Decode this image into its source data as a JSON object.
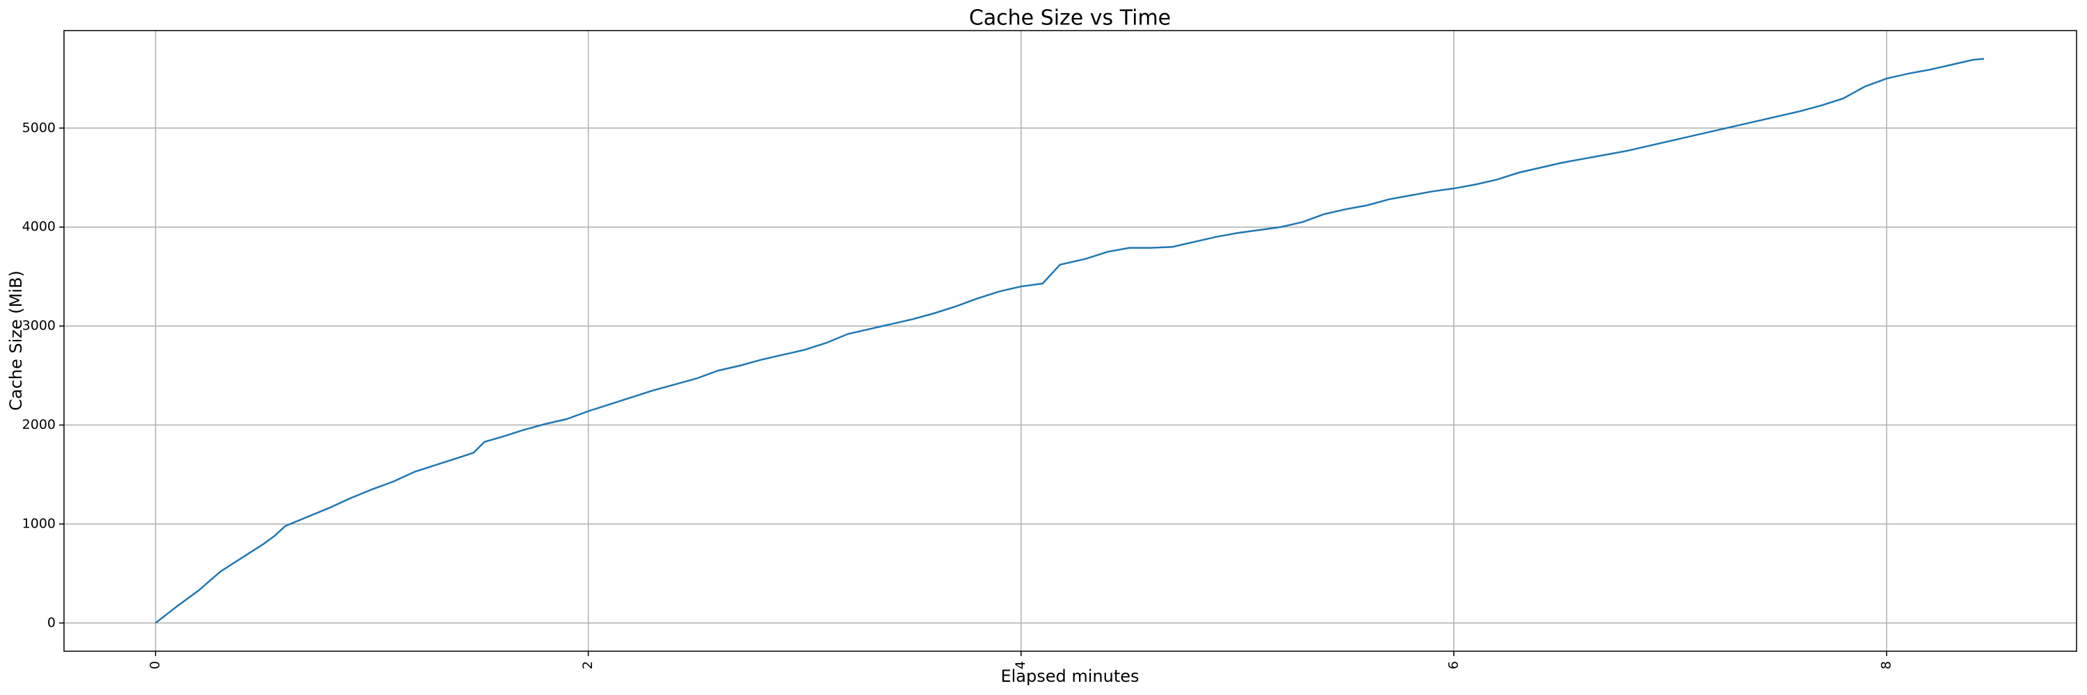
{
  "chart_data": {
    "type": "line",
    "title": "Cache Size vs Time",
    "x_label": "Elapsed minutes",
    "y_label": "Cache Size (MiB)",
    "x": [
      0,
      0.1,
      0.2,
      0.3,
      0.4,
      0.5,
      0.55,
      0.6,
      0.7,
      0.8,
      0.9,
      1.0,
      1.1,
      1.2,
      1.3,
      1.4,
      1.47,
      1.52,
      1.6,
      1.7,
      1.8,
      1.9,
      2.0,
      2.1,
      2.2,
      2.3,
      2.4,
      2.5,
      2.6,
      2.7,
      2.8,
      2.9,
      3.0,
      3.1,
      3.2,
      3.3,
      3.4,
      3.5,
      3.6,
      3.7,
      3.8,
      3.9,
      4.0,
      4.1,
      4.18,
      4.3,
      4.4,
      4.5,
      4.6,
      4.7,
      4.8,
      4.9,
      5.0,
      5.1,
      5.2,
      5.3,
      5.4,
      5.5,
      5.6,
      5.7,
      5.8,
      5.9,
      6.0,
      6.1,
      6.2,
      6.3,
      6.4,
      6.5,
      6.6,
      6.7,
      6.8,
      6.9,
      7.0,
      7.1,
      7.2,
      7.3,
      7.4,
      7.5,
      7.6,
      7.7,
      7.8,
      7.9,
      8.0,
      8.1,
      8.2,
      8.3,
      8.4,
      8.45
    ],
    "values": [
      0,
      170,
      330,
      520,
      660,
      800,
      880,
      980,
      1070,
      1160,
      1260,
      1350,
      1430,
      1530,
      1600,
      1670,
      1720,
      1830,
      1880,
      1950,
      2010,
      2060,
      2140,
      2210,
      2280,
      2350,
      2410,
      2470,
      2550,
      2600,
      2660,
      2710,
      2760,
      2830,
      2920,
      2970,
      3020,
      3070,
      3130,
      3200,
      3280,
      3350,
      3400,
      3430,
      3620,
      3680,
      3750,
      3790,
      3790,
      3800,
      3850,
      3900,
      3940,
      3970,
      4000,
      4050,
      4130,
      4180,
      4220,
      4280,
      4320,
      4360,
      4390,
      4430,
      4480,
      4550,
      4600,
      4650,
      4690,
      4730,
      4770,
      4820,
      4870,
      4920,
      4970,
      5020,
      5070,
      5120,
      5170,
      5230,
      5300,
      5420,
      5500,
      5550,
      5590,
      5640,
      5690,
      5700
    ],
    "color": "#1f77b4",
    "xlim": [
      -0.423,
      8.878
    ],
    "ylim": [
      -285,
      5985
    ],
    "xticks": [
      0,
      2,
      4,
      6,
      8
    ],
    "yticks": [
      0,
      1000,
      2000,
      3000,
      4000,
      5000
    ],
    "grid": true
  }
}
